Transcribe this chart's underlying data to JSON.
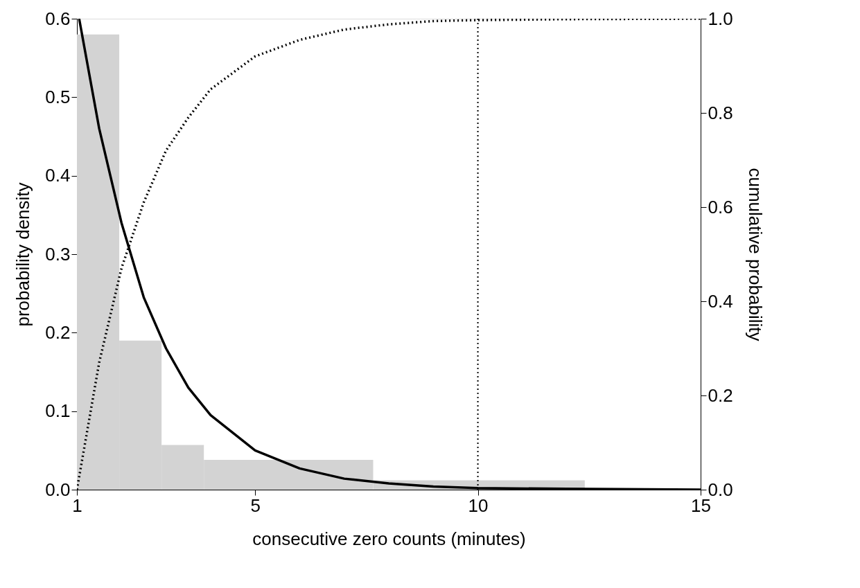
{
  "chart_data": {
    "type": "histogram",
    "xlabel": "consecutive zero counts (minutes)",
    "ylabel": "probability density",
    "y2label": "cumulative probability",
    "bins": [
      1,
      1.95,
      2.9,
      3.85,
      7.65,
      12.4
    ],
    "values": [
      0.58,
      0.19,
      0.057,
      0.038,
      0.012
    ],
    "color": "#d3d3d3",
    "series": [
      {
        "type": "line",
        "color": "#000000",
        "line_style": "solid",
        "x": [
          1.05,
          1.5,
          2,
          2.5,
          3,
          3.5,
          4,
          5,
          6,
          7,
          8,
          9,
          10,
          12,
          15
        ],
        "values": [
          0.6,
          0.46,
          0.34,
          0.245,
          0.18,
          0.13,
          0.095,
          0.05,
          0.027,
          0.014,
          0.008,
          0.004,
          0.002,
          0.001,
          0
        ]
      },
      {
        "type": "line",
        "color": "#000000",
        "line_style": "dotted",
        "axis": "y2",
        "x": [
          1,
          1.5,
          2,
          2.5,
          3,
          3.5,
          4,
          5,
          6,
          7,
          8,
          9,
          10,
          12,
          15
        ],
        "values": [
          0,
          0.27,
          0.47,
          0.61,
          0.72,
          0.79,
          0.85,
          0.92,
          0.955,
          0.977,
          0.988,
          0.995,
          0.997,
          0.999,
          1.0
        ]
      }
    ],
    "ref_lines": [
      {
        "axis": "x",
        "value": 10,
        "line_style": "dotted",
        "color": "#000000"
      }
    ],
    "xlim": [
      1,
      15
    ],
    "xticks": [
      1,
      5,
      10,
      15
    ],
    "ylim": [
      0,
      0.6
    ],
    "yticks": [
      {
        "value": 0,
        "label": "0.0"
      },
      0.1,
      0.2,
      0.3,
      0.4,
      0.5,
      0.6
    ],
    "y2lim": [
      0,
      1
    ],
    "y2ticks": [
      {
        "value": 0,
        "label": "0.0"
      },
      0.2,
      0.4,
      0.6,
      0.8,
      {
        "value": 1,
        "label": "1.0"
      }
    ],
    "grid": false
  }
}
